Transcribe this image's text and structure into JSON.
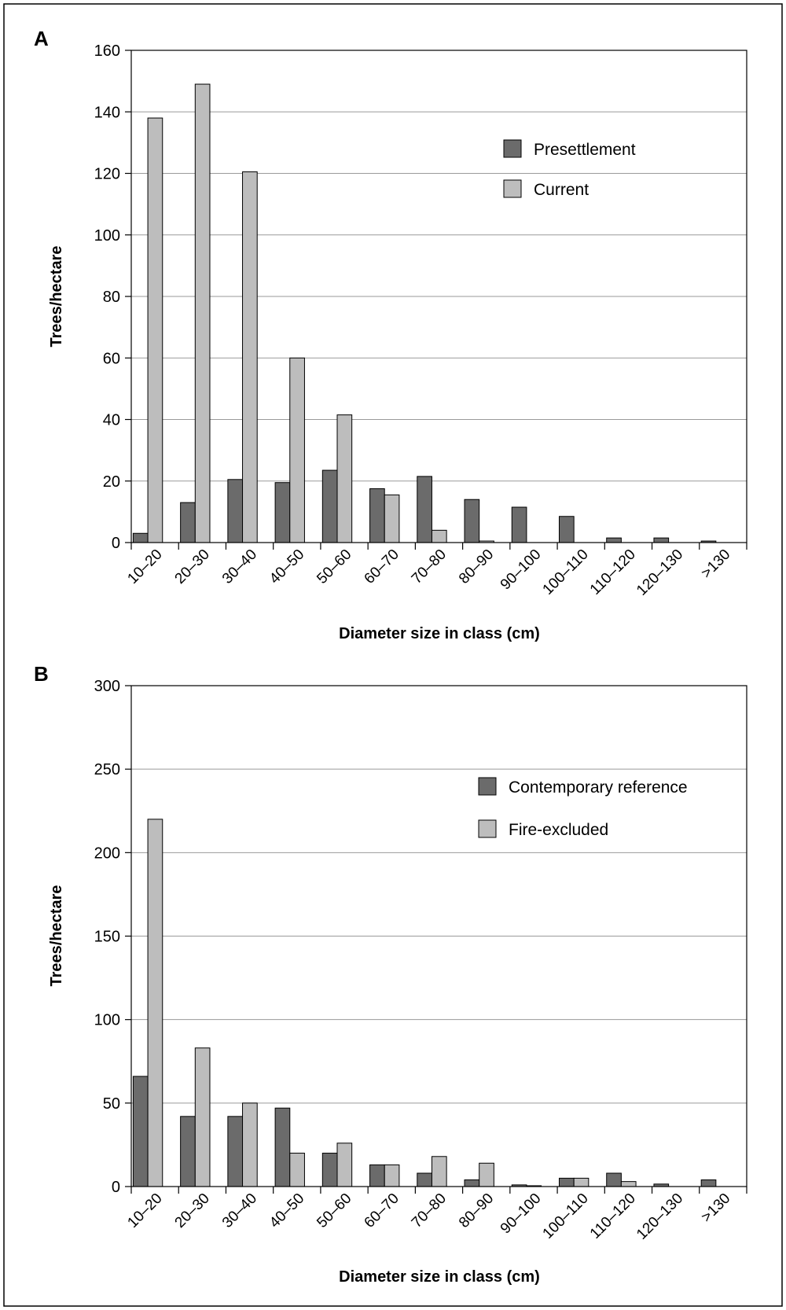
{
  "colors": {
    "dark_bar": "#6b6b6b",
    "light_bar": "#bdbdbd",
    "grid": "#9a9a9a",
    "frame": "#000000"
  },
  "chart_data": [
    {
      "panel": "A",
      "type": "bar",
      "categories": [
        "10–20",
        "20–30",
        "30–40",
        "40–50",
        "50–60",
        "60–70",
        "70–80",
        "80–90",
        "90–100",
        "100–110",
        "110–120",
        "120–130",
        ">130"
      ],
      "series": [
        {
          "name": "Presettlement",
          "color": "#6b6b6b",
          "values": [
            3,
            13,
            20.5,
            19.5,
            23.5,
            17.5,
            21.5,
            14,
            11.5,
            8.5,
            1.5,
            1.5,
            0.5
          ]
        },
        {
          "name": "Current",
          "color": "#bdbdbd",
          "values": [
            138,
            149,
            120.5,
            60,
            41.5,
            15.5,
            4,
            0.5,
            0,
            0,
            0,
            0,
            0
          ]
        }
      ],
      "xlabel": "Diameter size in class (cm)",
      "ylabel": "Trees/hectare",
      "ylim": [
        0,
        160
      ],
      "yticks": [
        0,
        20,
        40,
        60,
        80,
        100,
        120,
        140,
        160
      ],
      "grid": true,
      "legend_position": "top-right"
    },
    {
      "panel": "B",
      "type": "bar",
      "categories": [
        "10–20",
        "20–30",
        "30–40",
        "40–50",
        "50–60",
        "60–70",
        "70–80",
        "80–90",
        "90–100",
        "100–110",
        "110–120",
        "120–130",
        ">130"
      ],
      "series": [
        {
          "name": "Contemporary reference",
          "color": "#6b6b6b",
          "values": [
            66,
            42,
            42,
            47,
            20,
            13,
            8,
            4,
            1,
            5,
            8,
            1.5,
            4
          ]
        },
        {
          "name": "Fire-excluded",
          "color": "#bdbdbd",
          "values": [
            220,
            83,
            50,
            20,
            26,
            13,
            18,
            14,
            0.5,
            5,
            3,
            0,
            0
          ]
        }
      ],
      "xlabel": "Diameter size in class (cm)",
      "ylabel": "Trees/hectare",
      "ylim": [
        0,
        300
      ],
      "yticks": [
        0,
        50,
        100,
        150,
        200,
        250,
        300
      ],
      "grid": true,
      "legend_position": "top-right"
    }
  ]
}
